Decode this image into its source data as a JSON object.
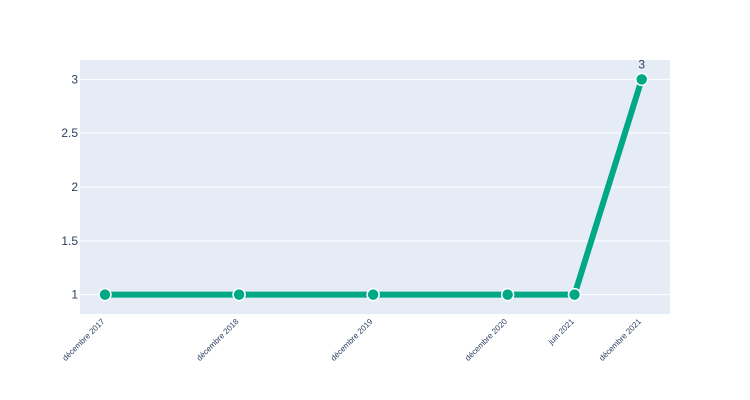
{
  "chart_data": {
    "type": "line",
    "title": "",
    "xlabel": "",
    "ylabel": "",
    "x": [
      "2017-12-01",
      "2018-12-01",
      "2019-12-01",
      "2020-12-01",
      "2021-06-01",
      "2021-12-01"
    ],
    "x_tick_labels": [
      "décembre 2017",
      "décembre 2018",
      "décembre 2019",
      "décembre 2020",
      "juin 2021",
      "décembre 2021"
    ],
    "series": [
      {
        "values": [
          1,
          1,
          1,
          1,
          1,
          3
        ]
      }
    ],
    "y_ticks": [
      "1",
      "1.5",
      "2",
      "2.5",
      "3"
    ],
    "y_tick_values": [
      1,
      1.5,
      2,
      2.5,
      3
    ],
    "ylim": [
      0.82,
      3.18
    ],
    "data_labels": [
      {
        "index": 5,
        "text": "3"
      }
    ],
    "grid": true,
    "legend": "none",
    "colors": {
      "line": "#00a886",
      "plot_bg": "#e5ecf6",
      "grid": "#ffffff",
      "text": "#2a3f5f"
    }
  }
}
